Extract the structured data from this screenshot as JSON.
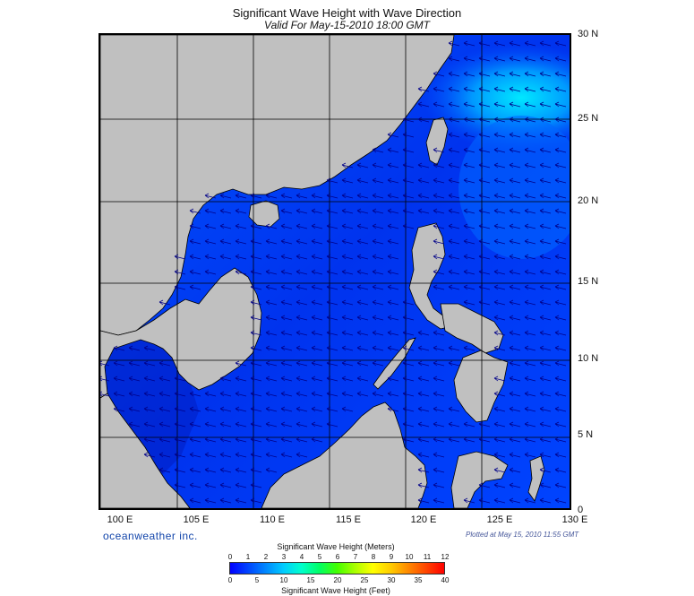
{
  "header": {
    "title": "Significant Wave Height with Wave Direction",
    "subtitle": "Valid For May-15-2010 18:00 GMT"
  },
  "map": {
    "lat_labels": [
      "30 N",
      "25 N",
      "20 N",
      "15 N",
      "10 N",
      "5 N",
      "0"
    ],
    "lon_labels": [
      "100 E",
      "105 E",
      "110 E",
      "115 E",
      "120 E",
      "125 E",
      "130 E"
    ],
    "colors": {
      "land": "#c0c0c0",
      "coast": "#000000",
      "grid": "#000000",
      "sea_low": "#0033ff",
      "sea_mid": "#0066ff",
      "sea_high": "#00ccff",
      "sea_deep": "#0000aa",
      "arrow": "#000088"
    },
    "arrow_direction": "pointing west-northwest"
  },
  "branding": {
    "company": "oceanweather inc.",
    "plotted": "Plotted at May 15, 2010 11:55 GMT"
  },
  "legend": {
    "title_meters": "Significant Wave Height (Meters)",
    "title_feet": "Significant Wave Height (Feet)",
    "meters_ticks": [
      "0",
      "1",
      "2",
      "3",
      "4",
      "5",
      "6",
      "7",
      "8",
      "9",
      "10",
      "11",
      "12"
    ],
    "feet_ticks": [
      "0",
      "5",
      "10",
      "15",
      "20",
      "25",
      "30",
      "35",
      "40"
    ],
    "colors": [
      "#0000ff",
      "#0044ff",
      "#0088ff",
      "#00ccff",
      "#00ffcc",
      "#00ff66",
      "#44ff00",
      "#aaff00",
      "#ffff00",
      "#ffcc00",
      "#ff8800",
      "#ff4400",
      "#ff0000"
    ]
  }
}
